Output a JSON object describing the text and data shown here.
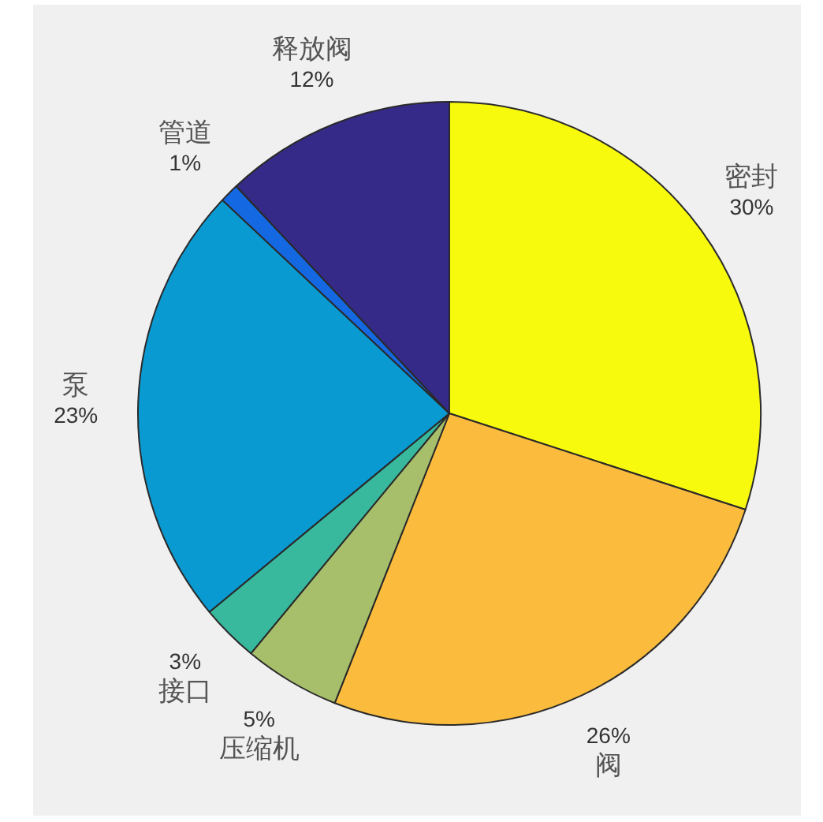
{
  "chart_data": {
    "type": "pie",
    "categories": [
      "密封",
      "阀",
      "压缩机",
      "接口",
      "泵",
      "管道",
      "释放阀"
    ],
    "values": [
      30,
      26,
      5,
      3,
      23,
      1,
      12
    ],
    "colors": [
      "#f8fa0d",
      "#fbbc3d",
      "#a7bf6b",
      "#38b99e",
      "#0a9ad2",
      "#1469e2",
      "#352a87"
    ],
    "value_labels": [
      "30%",
      "26%",
      "5%",
      "3%",
      "23%",
      "1%",
      "12%"
    ],
    "legend": false
  }
}
